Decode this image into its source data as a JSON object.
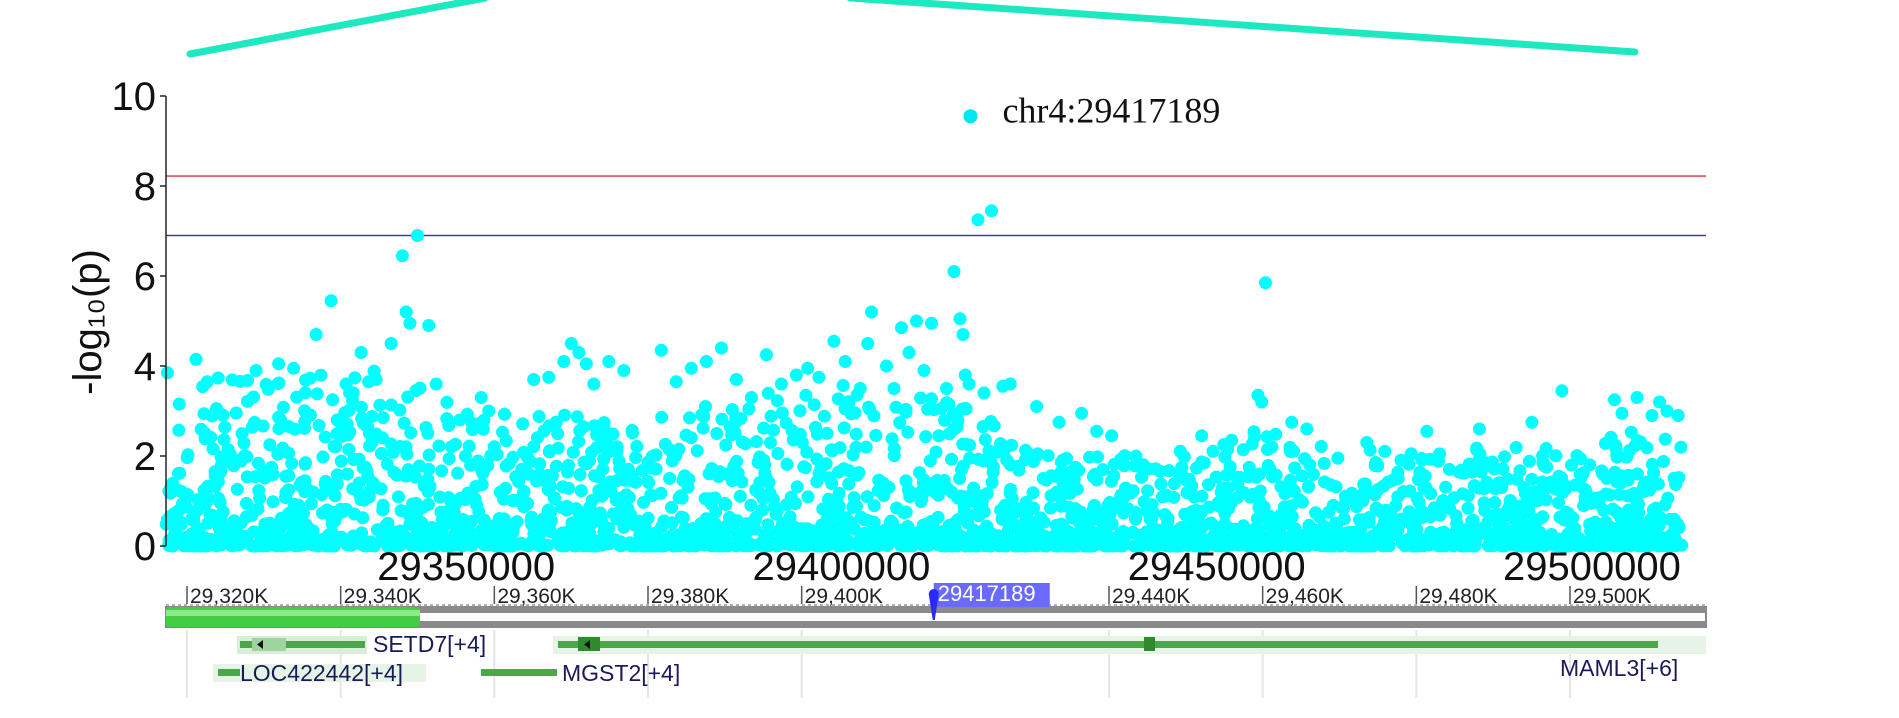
{
  "chart_data": {
    "type": "scatter",
    "ylabel": "-log₁₀(p)",
    "ylim": [
      0,
      10
    ],
    "yticks": [
      "0",
      "2",
      "4",
      "6",
      "8",
      "10"
    ],
    "xlim": [
      29310000,
      29512000
    ],
    "xticks": [
      {
        "value": 29350000,
        "label": "29350000"
      },
      {
        "value": 29400000,
        "label": "29400000"
      },
      {
        "value": 29450000,
        "label": "29450000"
      },
      {
        "value": 29500000,
        "label": "29500000"
      }
    ],
    "threshold_lines": [
      {
        "value": 8.22,
        "color": "#e05050"
      },
      {
        "value": 6.9,
        "color": "#3a3ab0"
      }
    ],
    "point_color": "#00ffff",
    "lead_snp": {
      "x": 29417189,
      "y": 9.55,
      "label": "chr4:29417189",
      "color": "#00e5ee"
    },
    "highlight_points": [
      [
        29310200,
        3.85
      ],
      [
        29314000,
        4.15
      ],
      [
        29315500,
        3.65
      ],
      [
        29322000,
        3.9
      ],
      [
        29325000,
        4.05
      ],
      [
        29327000,
        3.95
      ],
      [
        29330000,
        4.7
      ],
      [
        29332000,
        5.45
      ],
      [
        29334000,
        3.6
      ],
      [
        29336000,
        4.3
      ],
      [
        29337000,
        3.65
      ],
      [
        29338000,
        3.7
      ],
      [
        29340000,
        4.5
      ],
      [
        29341500,
        6.45
      ],
      [
        29342000,
        5.2
      ],
      [
        29342500,
        4.95
      ],
      [
        29343500,
        6.9
      ],
      [
        29345000,
        4.9
      ],
      [
        29346000,
        3.6
      ],
      [
        29352000,
        3.3
      ],
      [
        29353000,
        3.0
      ],
      [
        29359000,
        3.7
      ],
      [
        29361000,
        3.75
      ],
      [
        29363000,
        4.1
      ],
      [
        29364000,
        4.5
      ],
      [
        29365000,
        4.3
      ],
      [
        29366000,
        4.05
      ],
      [
        29367000,
        3.6
      ],
      [
        29369000,
        4.1
      ],
      [
        29371000,
        3.9
      ],
      [
        29376000,
        4.35
      ],
      [
        29378000,
        3.65
      ],
      [
        29380000,
        3.95
      ],
      [
        29382000,
        4.1
      ],
      [
        29384000,
        4.4
      ],
      [
        29386000,
        3.7
      ],
      [
        29388000,
        3.3
      ],
      [
        29390000,
        4.25
      ],
      [
        29392000,
        3.6
      ],
      [
        29394000,
        3.8
      ],
      [
        29395500,
        3.95
      ],
      [
        29397000,
        3.75
      ],
      [
        29399000,
        4.55
      ],
      [
        29400500,
        4.1
      ],
      [
        29402500,
        3.5
      ],
      [
        29403500,
        4.5
      ],
      [
        29404000,
        5.2
      ],
      [
        29406000,
        4.0
      ],
      [
        29407000,
        3.5
      ],
      [
        29408000,
        4.85
      ],
      [
        29409000,
        4.3
      ],
      [
        29410000,
        5.0
      ],
      [
        29411000,
        3.9
      ],
      [
        29412000,
        4.95
      ],
      [
        29414000,
        3.5
      ],
      [
        29415000,
        6.1
      ],
      [
        29415800,
        5.05
      ],
      [
        29416200,
        4.7
      ],
      [
        29416500,
        3.8
      ],
      [
        29417000,
        3.6
      ],
      [
        29418200,
        7.25
      ],
      [
        29419000,
        3.4
      ],
      [
        29420000,
        7.45
      ],
      [
        29421500,
        3.55
      ],
      [
        29422500,
        3.6
      ],
      [
        29426000,
        3.1
      ],
      [
        29429000,
        2.75
      ],
      [
        29432000,
        2.95
      ],
      [
        29434000,
        2.55
      ],
      [
        29436000,
        2.45
      ],
      [
        29448000,
        2.45
      ],
      [
        29452000,
        2.35
      ],
      [
        29455500,
        3.35
      ],
      [
        29456000,
        3.2
      ],
      [
        29456500,
        5.85
      ],
      [
        29460000,
        2.75
      ],
      [
        29462000,
        2.6
      ],
      [
        29470000,
        2.3
      ],
      [
        29478000,
        2.55
      ],
      [
        29485000,
        2.6
      ],
      [
        29492000,
        2.75
      ],
      [
        29496000,
        3.45
      ],
      [
        29503000,
        3.25
      ],
      [
        29504000,
        2.95
      ],
      [
        29506000,
        3.3
      ],
      [
        29508000,
        2.9
      ],
      [
        29510000,
        3.0
      ],
      [
        29511500,
        2.9
      ],
      [
        29509000,
        3.2
      ]
    ],
    "background_points": {
      "description": "dense field of SNPs below the highlighted points",
      "max_envelope": [
        [
          29310000,
          3.6
        ],
        [
          29320000,
          3.8
        ],
        [
          29330000,
          4.0
        ],
        [
          29340000,
          3.9
        ],
        [
          29350000,
          3.0
        ],
        [
          29360000,
          3.0
        ],
        [
          29370000,
          2.8
        ],
        [
          29380000,
          3.2
        ],
        [
          29390000,
          3.4
        ],
        [
          29400000,
          3.6
        ],
        [
          29410000,
          3.4
        ],
        [
          29418000,
          3.0
        ],
        [
          29425000,
          2.2
        ],
        [
          29435000,
          2.0
        ],
        [
          29445000,
          2.1
        ],
        [
          29455000,
          2.6
        ],
        [
          29465000,
          2.2
        ],
        [
          29475000,
          2.1
        ],
        [
          29485000,
          2.2
        ],
        [
          29495000,
          2.2
        ],
        [
          29505000,
          2.6
        ],
        [
          29512000,
          2.6
        ]
      ]
    }
  },
  "zoom_indicator": {
    "color": "#1de9c0"
  },
  "genome_track": {
    "ruler_labels": [
      {
        "value": 29320000,
        "label": "29,320K"
      },
      {
        "value": 29340000,
        "label": "29,340K"
      },
      {
        "value": 29360000,
        "label": "29,360K"
      },
      {
        "value": 29380000,
        "label": "29,380K"
      },
      {
        "value": 29400000,
        "label": "29,400K"
      },
      {
        "value": 29440000,
        "label": "29,440K"
      },
      {
        "value": 29460000,
        "label": "29,460K"
      },
      {
        "value": 29480000,
        "label": "29,480K"
      },
      {
        "value": 29500000,
        "label": "29,500K"
      }
    ],
    "marker_label": "29417189",
    "marker_value": 29417189,
    "marker_color": "#4c4cff",
    "gene_color": "#4aa84a",
    "genes": [
      {
        "label": "SETD7[+4]"
      },
      {
        "label": "LOC422442[+4]"
      },
      {
        "label": "MGST2[+4]"
      },
      {
        "label": "MAML3[+6]"
      }
    ]
  }
}
